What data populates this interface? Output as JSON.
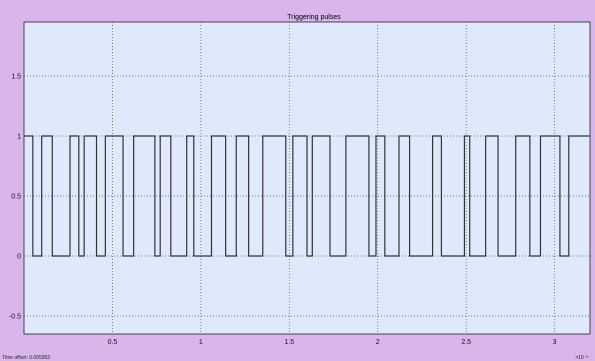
{
  "window": {
    "background": "#d8b6ec"
  },
  "chart_data": {
    "type": "line",
    "title": "Triggering pulses",
    "xlabel": "",
    "ylabel": "",
    "xlim": [
      0,
      3.2
    ],
    "ylim": [
      -0.65,
      1.95
    ],
    "xticks": [
      "0.5",
      "1",
      "1.5",
      "2",
      "2.5",
      "3"
    ],
    "yticks": [
      "-0.5",
      "0",
      "0.5",
      "1",
      "1.5"
    ],
    "grid": true,
    "plot_background": "#deeafb",
    "line_color": "#333333",
    "series": [
      {
        "step": true,
        "x": [
          0.0,
          0.05,
          0.05,
          0.1,
          0.1,
          0.16,
          0.16,
          0.26,
          0.26,
          0.31,
          0.31,
          0.34,
          0.34,
          0.41,
          0.41,
          0.46,
          0.46,
          0.56,
          0.56,
          0.62,
          0.62,
          0.74,
          0.74,
          0.77,
          0.77,
          0.83,
          0.83,
          0.92,
          0.92,
          0.96,
          0.96,
          1.06,
          1.06,
          1.14,
          1.14,
          1.2,
          1.2,
          1.27,
          1.27,
          1.35,
          1.35,
          1.48,
          1.48,
          1.52,
          1.52,
          1.6,
          1.6,
          1.63,
          1.63,
          1.73,
          1.73,
          1.82,
          1.82,
          1.95,
          1.95,
          1.99,
          1.99,
          2.04,
          2.04,
          2.12,
          2.12,
          2.18,
          2.18,
          2.31,
          2.31,
          2.36,
          2.36,
          2.49,
          2.49,
          2.52,
          2.52,
          2.61,
          2.61,
          2.68,
          2.68,
          2.78,
          2.78,
          2.86,
          2.86,
          2.92,
          2.92,
          3.03,
          3.03,
          3.08,
          3.08,
          3.2
        ],
        "y": [
          1,
          1,
          0,
          0,
          1,
          1,
          0,
          0,
          1,
          1,
          0,
          0,
          1,
          1,
          0,
          0,
          1,
          1,
          0,
          0,
          1,
          1,
          0,
          0,
          1,
          1,
          0,
          0,
          1,
          1,
          0,
          0,
          1,
          1,
          0,
          0,
          1,
          1,
          0,
          0,
          1,
          1,
          0,
          0,
          1,
          1,
          0,
          0,
          1,
          1,
          0,
          0,
          1,
          1,
          0,
          0,
          1,
          1,
          0,
          0,
          1,
          1,
          0,
          0,
          1,
          1,
          0,
          0,
          1,
          1,
          0,
          0,
          1,
          1,
          0,
          0,
          1,
          1,
          0,
          0,
          1,
          1,
          0,
          0,
          1,
          1
        ]
      }
    ]
  },
  "footer": {
    "time_offset": "Time offset:  0.005953",
    "x_exponent": "×10⁻³"
  }
}
